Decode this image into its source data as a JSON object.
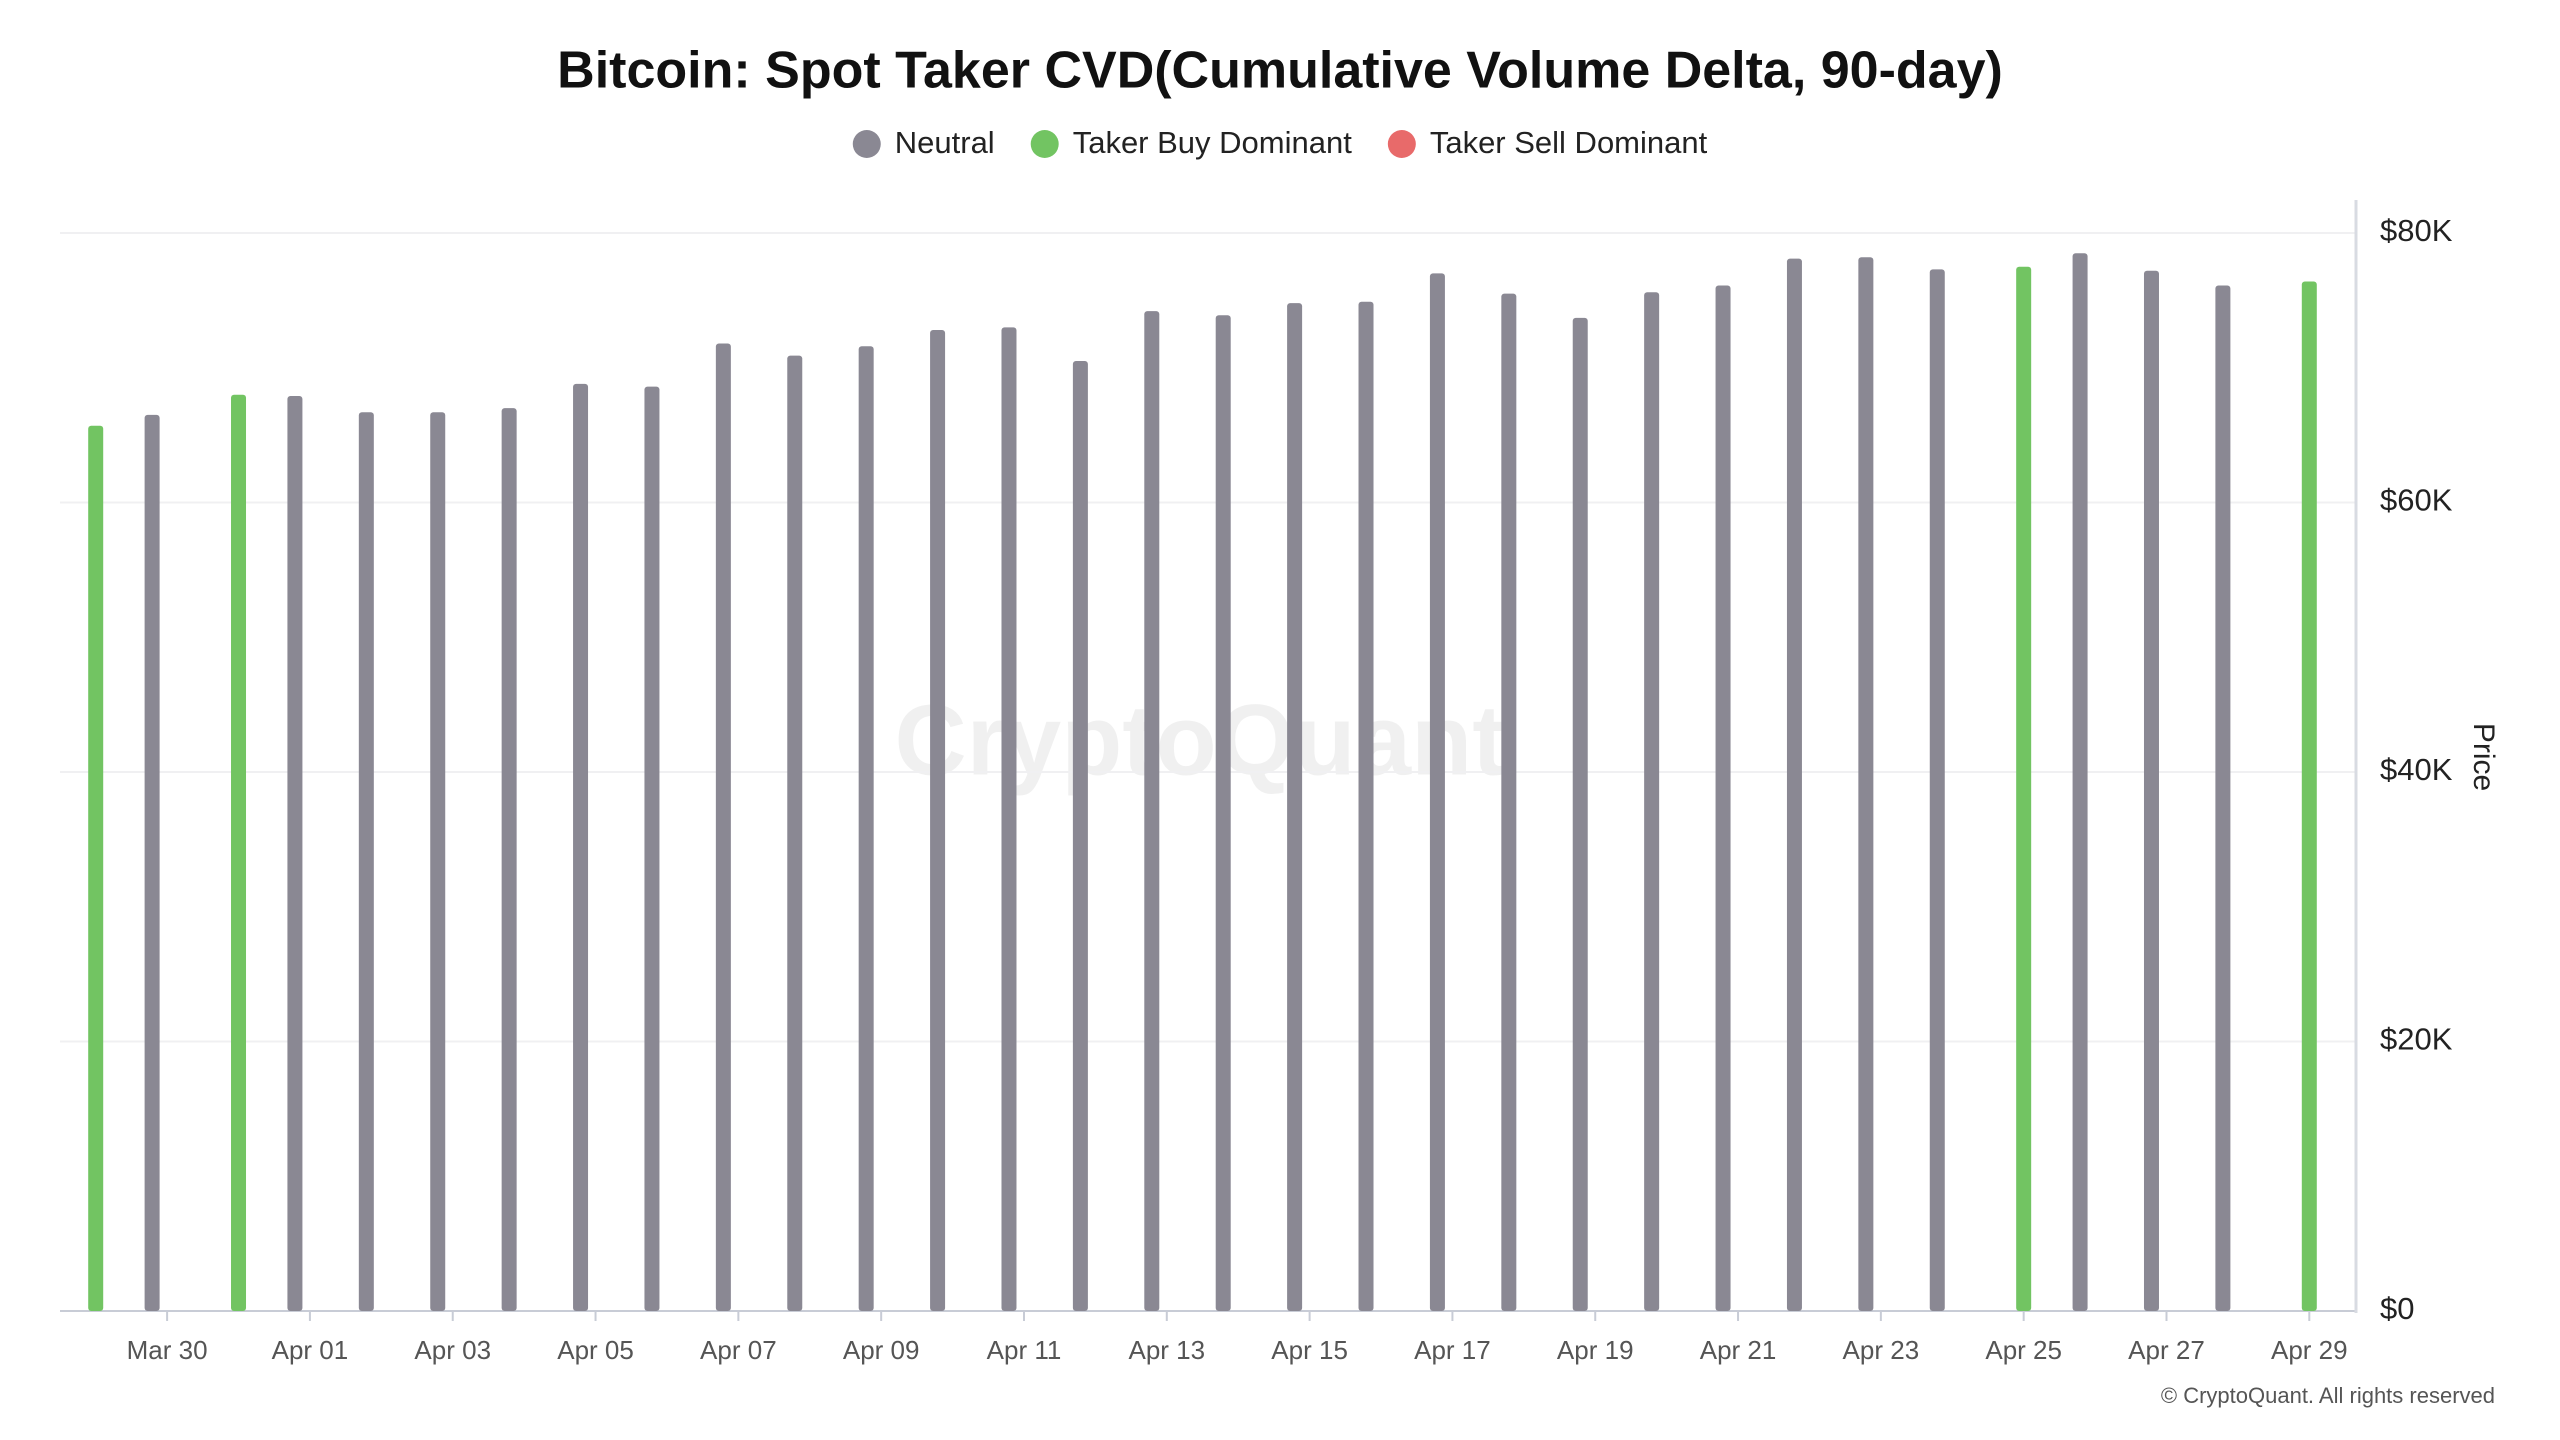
{
  "chart_data": {
    "type": "bar",
    "title": "Bitcoin: Spot Taker CVD(Cumulative Volume Delta, 90-day)",
    "y_label": "Price",
    "watermark": "CryptoQuant",
    "credit": "© CryptoQuant. All rights reserved",
    "categories": [
      null,
      "Mar 30",
      null,
      "Apr 01",
      null,
      "Apr 03",
      null,
      "Apr 05",
      null,
      "Apr 07",
      null,
      "Apr 09",
      null,
      "Apr 11",
      null,
      "Apr 13",
      null,
      "Apr 15",
      null,
      "Apr 17",
      null,
      "Apr 19",
      null,
      "Apr 21",
      null,
      "Apr 23",
      null,
      "Apr 25",
      null,
      "Apr 27",
      null,
      "Apr 29"
    ],
    "series": [
      {
        "name": "Neutral",
        "color": "#8a8893",
        "values": [
          null,
          66500,
          null,
          67900,
          66700,
          66700,
          67000,
          68800,
          68600,
          71800,
          70900,
          71600,
          72800,
          73000,
          70500,
          74200,
          73900,
          74800,
          74900,
          77000,
          75500,
          73700,
          75600,
          76100,
          78100,
          78200,
          77300,
          null,
          78500,
          77200,
          76100,
          null
        ]
      },
      {
        "name": "Taker Buy Dominant",
        "color": "#72c462",
        "values": [
          65700,
          null,
          68000,
          null,
          null,
          null,
          null,
          null,
          null,
          null,
          null,
          null,
          null,
          null,
          null,
          null,
          null,
          null,
          null,
          null,
          null,
          null,
          null,
          null,
          null,
          null,
          null,
          77500,
          null,
          null,
          null,
          76400
        ]
      },
      {
        "name": "Taker Sell Dominant",
        "color": "#e86a6a",
        "values": [
          null,
          null,
          null,
          null,
          null,
          null,
          null,
          null,
          null,
          null,
          null,
          null,
          null,
          null,
          null,
          null,
          null,
          null,
          null,
          null,
          null,
          null,
          null,
          null,
          null,
          null,
          null,
          null,
          null,
          null,
          null,
          null
        ]
      }
    ],
    "ylim": [
      0,
      80000
    ],
    "yticks": [
      {
        "value": 0,
        "label": "$0"
      },
      {
        "value": 20000,
        "label": "$20K"
      },
      {
        "value": 40000,
        "label": "$40K"
      },
      {
        "value": 60000,
        "label": "$60K"
      },
      {
        "value": 80000,
        "label": "$80K"
      }
    ],
    "y_axis_side": "right",
    "grid": true,
    "legend": "top"
  }
}
